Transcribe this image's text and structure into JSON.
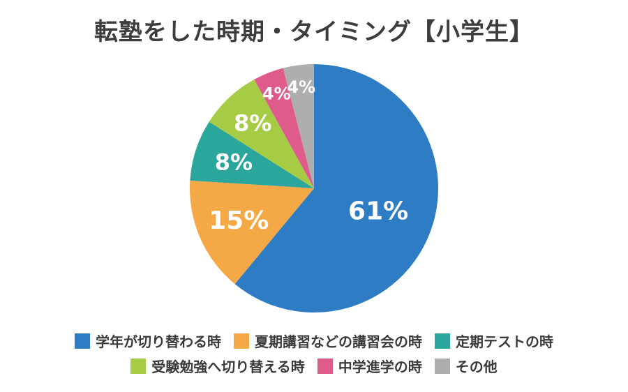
{
  "chart_data": {
    "type": "pie",
    "title": "転塾をした時期・タイミング【小学生】",
    "slices": [
      {
        "name": "学年が切り替わる時",
        "value": 61,
        "label": "61%",
        "color": "#2e7cc4"
      },
      {
        "name": "夏期講習などの講習会の時",
        "value": 15,
        "label": "15%",
        "color": "#f5a846"
      },
      {
        "name": "定期テストの時",
        "value": 8,
        "label": "8%",
        "color": "#2aa69c"
      },
      {
        "name": "受験勉強へ切り替える時",
        "value": 8,
        "label": "8%",
        "color": "#a6cb45"
      },
      {
        "name": "中学進学の時",
        "value": 4,
        "label": "4%",
        "color": "#de5b8c"
      },
      {
        "name": "その他",
        "value": 4,
        "label": "4%",
        "color": "#aeaeae"
      }
    ],
    "start": "12 o'clock",
    "direction": "clockwise",
    "legend_position": "bottom"
  }
}
